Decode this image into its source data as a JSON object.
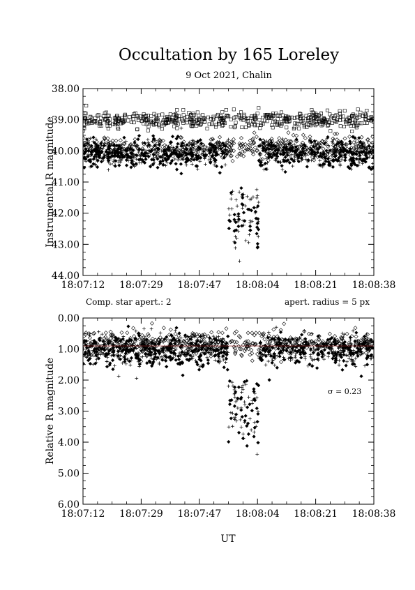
{
  "page": {
    "title": "Occultation by 165 Loreley",
    "subtitle": "9 Oct 2021, Chalin",
    "comp_note": "Comp. star apert.: 2",
    "radius_note": "apert. radius = 5 px",
    "xlabel": "UT"
  },
  "chart_data": [
    {
      "type": "scatter",
      "title": "Occultation by 165 Loreley",
      "subtitle": "9 Oct 2021, Chalin",
      "xlabel": "",
      "ylabel": "Instrumental R magnitude",
      "x_tick_labels": [
        "18:07:12",
        "18:07:29",
        "18:07:47",
        "18:08:04",
        "18:08:21",
        "18:08:38"
      ],
      "xlim": [
        "18:07:12",
        "18:08:38"
      ],
      "y_tick_labels": [
        "38.00",
        "39.00",
        "40.00",
        "41.00",
        "42.00",
        "43.00",
        "44.00"
      ],
      "ylim": [
        38.0,
        44.0
      ],
      "y_inverted": true,
      "grid": false,
      "series": [
        {
          "marker": "open-square",
          "mean": 39.0,
          "scatter": 0.13,
          "t_start": "18:07:12",
          "t_end": "18:08:38"
        },
        {
          "marker": "open-diamond",
          "mean": 39.9,
          "scatter": 0.17,
          "t_start": "18:07:12",
          "t_end": "18:08:38"
        },
        {
          "marker": "plus",
          "mean": 40.1,
          "scatter": 0.22,
          "t_start": "18:07:12",
          "t_end": "18:08:38"
        },
        {
          "marker": "filled-diamond",
          "mean": 40.1,
          "scatter": 0.22,
          "t_start": "18:07:12",
          "t_end": "18:08:38"
        }
      ],
      "event": {
        "t_start": "18:07:55",
        "t_end": "18:08:04",
        "mean": 42.0,
        "scatter": 0.55,
        "min": 41.1,
        "max": 44.0
      }
    },
    {
      "type": "scatter",
      "xlabel": "UT",
      "ylabel": "Relative R magnitude",
      "x_tick_labels": [
        "18:07:12",
        "18:07:29",
        "18:07:47",
        "18:08:04",
        "18:08:21",
        "18:08:38"
      ],
      "xlim": [
        "18:07:12",
        "18:08:38"
      ],
      "y_tick_labels": [
        "0.00",
        "1.00",
        "2.00",
        "3.00",
        "4.00",
        "5.00",
        "6.00"
      ],
      "ylim": [
        0.0,
        6.0
      ],
      "y_inverted": true,
      "grid": false,
      "sigma_label": "σ = 0.23",
      "series": [
        {
          "marker": "open-diamond",
          "mean": 0.85,
          "scatter": 0.2,
          "t_start": "18:07:12",
          "t_end": "18:08:38"
        },
        {
          "marker": "plus",
          "mean": 1.05,
          "scatter": 0.25,
          "t_start": "18:07:12",
          "t_end": "18:08:38"
        },
        {
          "marker": "filled-diamond",
          "mean": 1.05,
          "scatter": 0.25,
          "t_start": "18:07:12",
          "t_end": "18:08:38"
        }
      ],
      "mean_line": {
        "value": 0.9,
        "color": "#8b1a1a"
      },
      "event": {
        "t_start": "18:07:55",
        "t_end": "18:08:04",
        "mean": 3.0,
        "scatter": 0.6,
        "min": 2.0,
        "max": 5.0
      }
    }
  ]
}
